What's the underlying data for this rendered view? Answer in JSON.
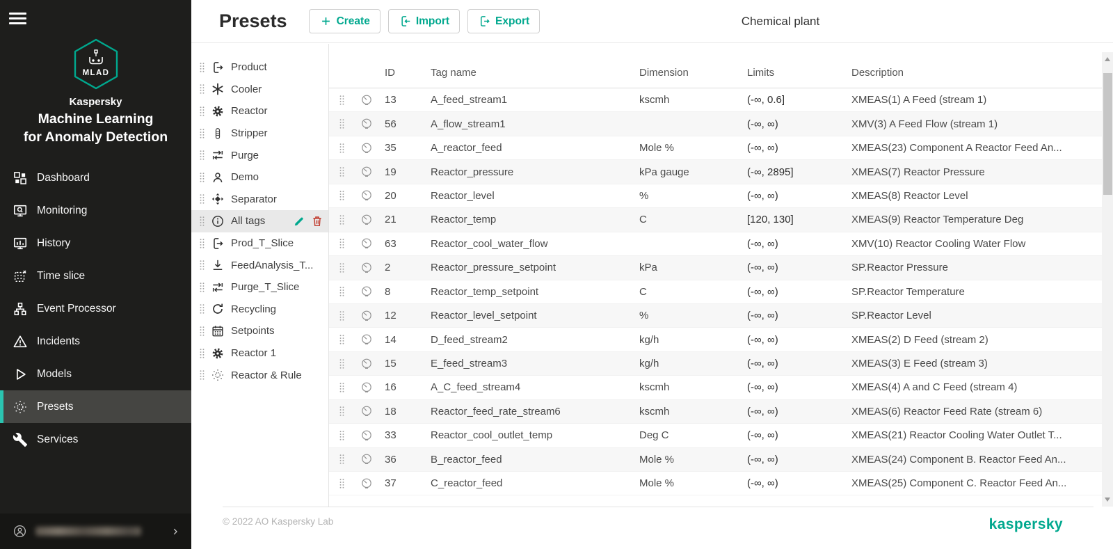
{
  "sidebar": {
    "logo": {
      "badge": "MLAD",
      "brand": "Kaspersky",
      "product_line1": "Machine Learning",
      "product_line2": "for Anomaly Detection"
    },
    "items": [
      {
        "icon": "dashboard-icon",
        "label": "Dashboard"
      },
      {
        "icon": "monitoring-icon",
        "label": "Monitoring"
      },
      {
        "icon": "history-icon",
        "label": "History"
      },
      {
        "icon": "time-slice-icon",
        "label": "Time slice"
      },
      {
        "icon": "event-processor-icon",
        "label": "Event Processor"
      },
      {
        "icon": "incidents-icon",
        "label": "Incidents"
      },
      {
        "icon": "models-icon",
        "label": "Models"
      },
      {
        "icon": "presets-icon",
        "label": "Presets",
        "active": true
      },
      {
        "icon": "services-icon",
        "label": "Services"
      }
    ],
    "user": {
      "email_redacted": true
    }
  },
  "header": {
    "title": "Presets",
    "buttons": [
      {
        "icon": "plus-icon",
        "label": "Create"
      },
      {
        "icon": "import-icon",
        "label": "Import"
      },
      {
        "icon": "export-icon",
        "label": "Export"
      }
    ],
    "context_title": "Chemical plant"
  },
  "presets": [
    {
      "icon": "export-doc-icon",
      "label": "Product"
    },
    {
      "icon": "snowflake-icon",
      "label": "Cooler"
    },
    {
      "icon": "gear-icon",
      "label": "Reactor"
    },
    {
      "icon": "column-icon",
      "label": "Stripper"
    },
    {
      "icon": "swap-icon",
      "label": "Purge"
    },
    {
      "icon": "person-icon",
      "label": "Demo"
    },
    {
      "icon": "move-icon",
      "label": "Separator"
    },
    {
      "icon": "info-icon",
      "label": "All tags",
      "active": true
    },
    {
      "icon": "export-doc-icon",
      "label": "Prod_T_Slice"
    },
    {
      "icon": "download-icon",
      "label": "FeedAnalysis_T..."
    },
    {
      "icon": "swap-icon",
      "label": "Purge_T_Slice"
    },
    {
      "icon": "refresh-icon",
      "label": "Recycling"
    },
    {
      "icon": "calendar-icon",
      "label": "Setpoints"
    },
    {
      "icon": "gear-icon",
      "label": "Reactor 1"
    },
    {
      "icon": "sun-icon",
      "label": "Reactor & Rule"
    }
  ],
  "table": {
    "columns": [
      "ID",
      "Tag name",
      "Dimension",
      "Limits",
      "Description"
    ],
    "rows": [
      {
        "id": "13",
        "tag": "A_feed_stream1",
        "dimension": "kscmh",
        "limits": "(-∞, 0.6]",
        "description": "XMEAS(1) A Feed (stream 1)"
      },
      {
        "id": "56",
        "tag": "A_flow_stream1",
        "dimension": "",
        "limits": "(-∞, ∞)",
        "description": "XMV(3) A Feed Flow (stream 1)"
      },
      {
        "id": "35",
        "tag": "A_reactor_feed",
        "dimension": "Mole %",
        "limits": "(-∞, ∞)",
        "description": "XMEAS(23) Component A Reactor Feed An..."
      },
      {
        "id": "19",
        "tag": "Reactor_pressure",
        "dimension": "kPa gauge",
        "limits": "(-∞, 2895]",
        "description": "XMEAS(7) Reactor Pressure"
      },
      {
        "id": "20",
        "tag": "Reactor_level",
        "dimension": "%",
        "limits": "(-∞, ∞)",
        "description": "XMEAS(8) Reactor Level"
      },
      {
        "id": "21",
        "tag": "Reactor_temp",
        "dimension": "C",
        "limits": "[120, 130]",
        "description": "XMEAS(9) Reactor Temperature Deg"
      },
      {
        "id": "63",
        "tag": "Reactor_cool_water_flow",
        "dimension": "",
        "limits": "(-∞, ∞)",
        "description": "XMV(10) Reactor Cooling Water Flow"
      },
      {
        "id": "2",
        "tag": "Reactor_pressure_setpoint",
        "dimension": "kPa",
        "limits": "(-∞, ∞)",
        "description": "SP.Reactor Pressure"
      },
      {
        "id": "8",
        "tag": "Reactor_temp_setpoint",
        "dimension": "C",
        "limits": "(-∞, ∞)",
        "description": "SP.Reactor Temperature"
      },
      {
        "id": "12",
        "tag": "Reactor_level_setpoint",
        "dimension": "%",
        "limits": "(-∞, ∞)",
        "description": "SP.Reactor Level"
      },
      {
        "id": "14",
        "tag": "D_feed_stream2",
        "dimension": "kg/h",
        "limits": "(-∞, ∞)",
        "description": "XMEAS(2) D Feed (stream 2)"
      },
      {
        "id": "15",
        "tag": "E_feed_stream3",
        "dimension": "kg/h",
        "limits": "(-∞, ∞)",
        "description": "XMEAS(3) E Feed (stream 3)"
      },
      {
        "id": "16",
        "tag": "A_C_feed_stream4",
        "dimension": "kscmh",
        "limits": "(-∞, ∞)",
        "description": "XMEAS(4) A and C Feed (stream 4)"
      },
      {
        "id": "18",
        "tag": "Reactor_feed_rate_stream6",
        "dimension": "kscmh",
        "limits": "(-∞, ∞)",
        "description": "XMEAS(6) Reactor Feed Rate (stream 6)"
      },
      {
        "id": "33",
        "tag": "Reactor_cool_outlet_temp",
        "dimension": "Deg C",
        "limits": "(-∞, ∞)",
        "description": "XMEAS(21) Reactor Cooling Water Outlet T..."
      },
      {
        "id": "36",
        "tag": "B_reactor_feed",
        "dimension": "Mole %",
        "limits": "(-∞, ∞)",
        "description": "XMEAS(24) Component B. Reactor Feed An..."
      },
      {
        "id": "37",
        "tag": "C_reactor_feed",
        "dimension": "Mole %",
        "limits": "(-∞, ∞)",
        "description": "XMEAS(25) Component C. Reactor Feed An..."
      }
    ]
  },
  "footer": {
    "copyright": "© 2022 AO Kaspersky Lab",
    "brand": "kaspersky"
  },
  "colors": {
    "accent": "#00a88e",
    "accent_bright": "#2bc4b0",
    "danger": "#c0392b",
    "sidebar_bg": "#1e1e1c",
    "row_alt_bg": "#f7f7f7"
  }
}
